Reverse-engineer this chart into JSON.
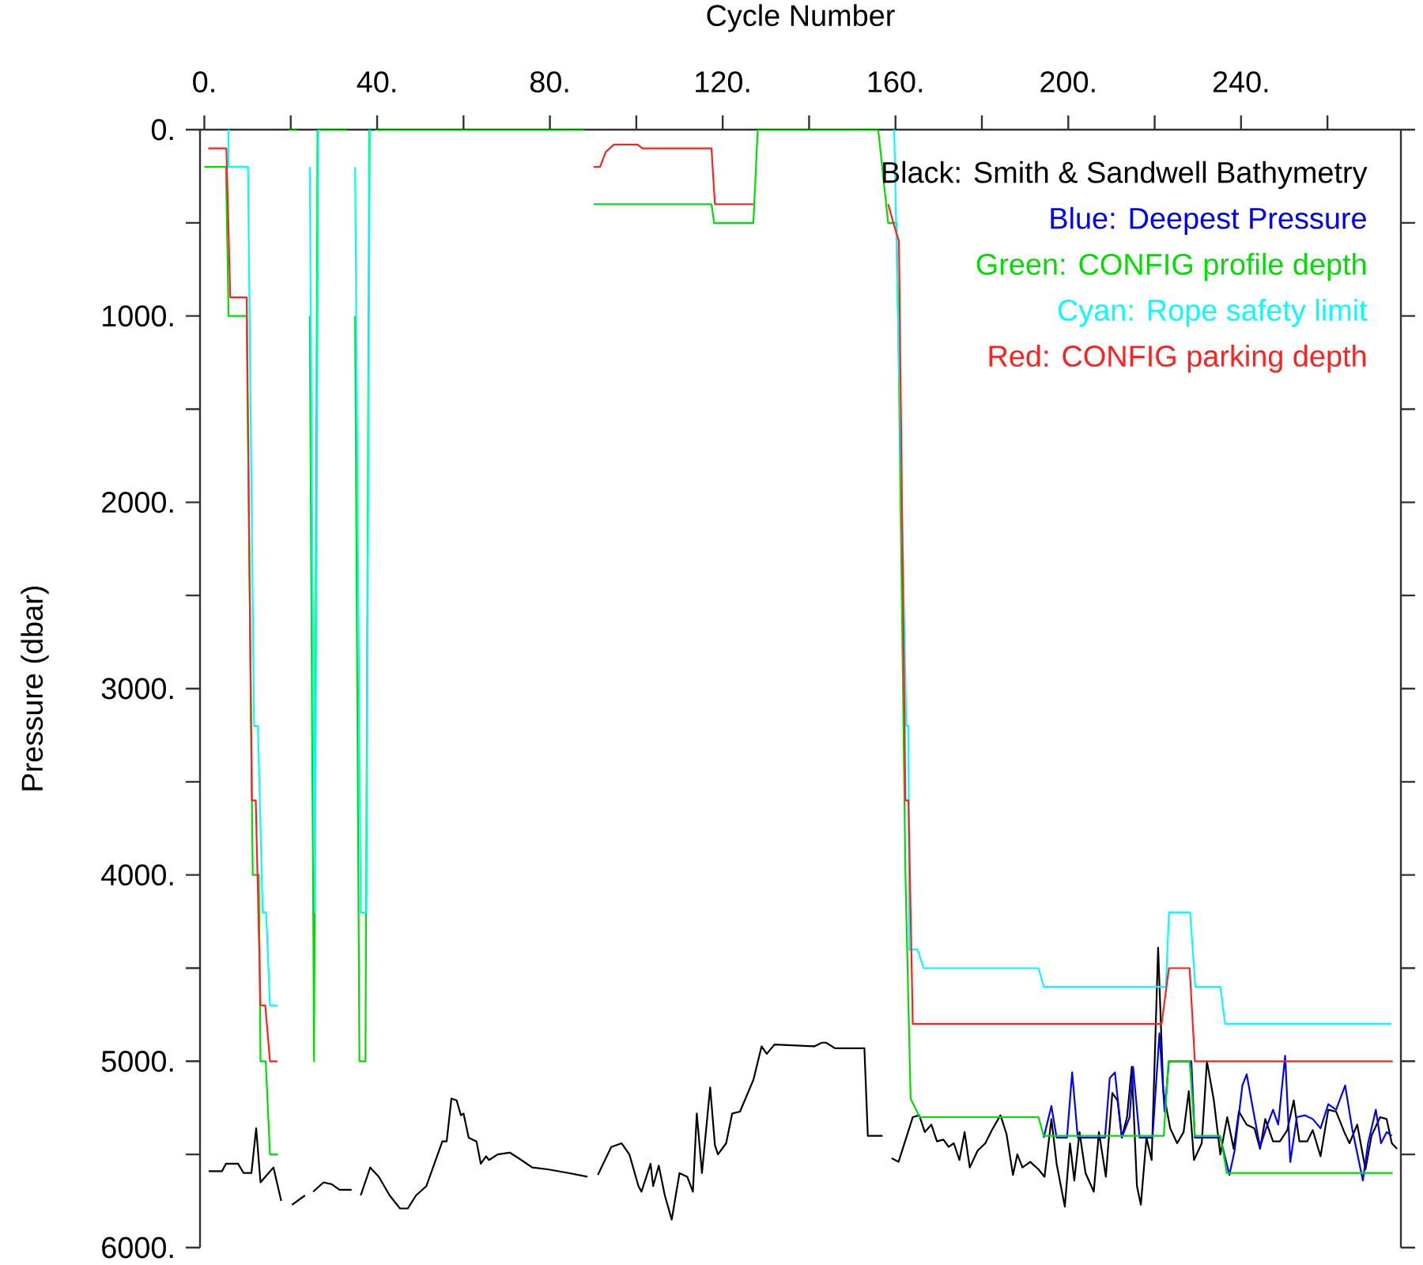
{
  "chart_data": {
    "type": "line",
    "xlabel": "Cycle Number",
    "ylabel": "Pressure (dbar)",
    "xlim": [
      -1,
      277
    ],
    "ylim": [
      6000,
      0
    ],
    "xticks": [
      {
        "value": 0,
        "label": "0."
      },
      {
        "value": 20,
        "label": null
      },
      {
        "value": 40,
        "label": "40."
      },
      {
        "value": 60,
        "label": null
      },
      {
        "value": 80,
        "label": "80."
      },
      {
        "value": 100,
        "label": null
      },
      {
        "value": 120,
        "label": "120."
      },
      {
        "value": 140,
        "label": null
      },
      {
        "value": 160,
        "label": "160."
      },
      {
        "value": 180,
        "label": null
      },
      {
        "value": 200,
        "label": "200."
      },
      {
        "value": 220,
        "label": null
      },
      {
        "value": 240,
        "label": "240."
      },
      {
        "value": 260,
        "label": null
      }
    ],
    "yticks": [
      {
        "value": 0,
        "label": "0."
      },
      {
        "value": 500,
        "label": null
      },
      {
        "value": 1000,
        "label": "1000."
      },
      {
        "value": 1500,
        "label": null
      },
      {
        "value": 2000,
        "label": "2000."
      },
      {
        "value": 2500,
        "label": null
      },
      {
        "value": 3000,
        "label": "3000."
      },
      {
        "value": 3500,
        "label": null
      },
      {
        "value": 4000,
        "label": "4000."
      },
      {
        "value": 4500,
        "label": null
      },
      {
        "value": 5000,
        "label": "5000."
      },
      {
        "value": 5500,
        "label": null
      },
      {
        "value": 6000,
        "label": "6000."
      }
    ],
    "legend": "top right",
    "series": [
      {
        "name": "Black: Smith & Sandwell Bathymetry",
        "color": "#000000",
        "x": [
          1,
          4.1,
          5,
          7.8,
          9.1,
          10.9,
          12,
          13,
          16,
          17.8,
          18.5,
          20.3,
          23.3,
          24,
          25.2,
          27.6,
          29.5,
          31.3,
          34.1,
          35,
          36.2,
          38.4,
          40.4,
          42.9,
          45.3,
          47.1,
          49,
          51.4,
          55.1,
          56.1,
          57.2,
          58.4,
          59.4,
          60,
          61.2,
          63,
          64,
          65.2,
          65.9,
          67.9,
          70.7,
          73.4,
          75.9,
          79.5,
          84.4,
          88.7,
          90,
          91.1,
          94.2,
          96.6,
          98.4,
          100.5,
          101.2,
          103.3,
          103.9,
          105.2,
          106.6,
          108.2,
          110,
          111.8,
          113.1,
          114,
          115.2,
          117.1,
          118.2,
          118.9,
          120.8,
          122.2,
          124,
          127.1,
          129,
          130.2,
          132,
          141.2,
          143,
          143.9,
          146,
          152.8,
          153.6,
          157,
          158,
          159.1,
          160.7,
          162.5,
          164,
          165.5,
          166.8,
          168.3,
          169.6,
          171.1,
          172.3,
          173.5,
          174.8,
          176,
          177.2,
          179,
          180.8,
          182.3,
          184.3,
          185.7,
          187.2,
          188.2,
          189.4,
          191.2,
          193.1,
          194.5,
          196.1,
          197.3,
          199.2,
          200.4,
          201.4,
          202.6,
          204,
          205.9,
          207.1,
          208.7,
          210.2,
          211.4,
          212.4,
          213.6,
          214.7,
          215.9,
          216.8,
          218.1,
          219.3,
          220.8,
          222,
          223.6,
          225.2,
          226.7,
          227.9,
          229.1,
          230.9,
          232.1,
          233.7,
          235.2,
          236.8,
          238.3,
          239.5,
          241.3,
          243.1,
          244.4,
          245.6,
          247.4,
          249,
          250.7,
          252.2,
          253.5,
          255.3,
          256.6,
          258.4,
          260.2,
          262,
          263.9,
          265.1,
          266.9,
          268.8,
          270.2,
          272.2,
          273.7,
          274.9,
          276.1
        ],
        "values": [
          5590,
          5590,
          5550,
          5550,
          5600,
          5600,
          5360,
          5650,
          5570,
          5750,
          null,
          5770,
          5720,
          null,
          5700,
          5650,
          5660,
          5690,
          5690,
          null,
          5720,
          5570,
          5620,
          5720,
          5790,
          5790,
          5720,
          5670,
          5430,
          5430,
          5200,
          5210,
          5290,
          5280,
          5410,
          5430,
          5550,
          5510,
          5530,
          5500,
          5490,
          5530,
          5570,
          5580,
          5600,
          5620,
          null,
          5610,
          5460,
          5440,
          5500,
          5670,
          5700,
          5550,
          5670,
          5560,
          5720,
          5850,
          5600,
          5620,
          5700,
          5280,
          5600,
          5140,
          5450,
          5500,
          5440,
          5280,
          5270,
          5100,
          4920,
          4960,
          4910,
          4920,
          4900,
          4900,
          4930,
          4930,
          5400,
          5400,
          null,
          5520,
          5540,
          5410,
          5300,
          5290,
          5380,
          5340,
          5430,
          5420,
          5460,
          5440,
          5530,
          5380,
          5570,
          5480,
          5440,
          5370,
          5290,
          5390,
          5610,
          5500,
          5570,
          5540,
          5580,
          5620,
          5310,
          5550,
          5780,
          5440,
          5640,
          5380,
          5600,
          5700,
          5380,
          5620,
          5170,
          5210,
          5410,
          5300,
          5030,
          5670,
          5770,
          5410,
          5530,
          4390,
          5160,
          5360,
          5440,
          5380,
          5160,
          5530,
          5440,
          5000,
          5210,
          5500,
          5300,
          5470,
          5270,
          5340,
          5360,
          5470,
          5310,
          5430,
          5430,
          5370,
          5210,
          5430,
          5430,
          5370,
          5510,
          5260,
          5270,
          5380,
          5440,
          5340,
          5580,
          5400,
          5300,
          5310,
          5440,
          5470
        ]
      },
      {
        "name": "Blue: Deepest Pressure",
        "color": "#0000ff",
        "x": [
          194.3,
          196.1,
          197.3,
          199.7,
          200.9,
          202.2,
          208.5,
          209.6,
          210.8,
          212.4,
          214.2,
          215,
          216.5,
          219.5,
          221.1,
          222.3,
          223.3,
          228.5,
          229.3,
          235.2,
          237.3,
          238.5,
          240.3,
          241.3,
          243.1,
          244.4,
          245.8,
          247.4,
          248.6,
          250.2,
          251.4,
          252.9,
          254.8,
          256.6,
          258.4,
          260.2,
          262,
          264.1,
          265.7,
          268.2,
          269.4,
          271.2,
          272.4,
          273.7,
          274.9
        ],
        "values": [
          5410,
          5240,
          5410,
          5410,
          5060,
          5410,
          5410,
          5090,
          5060,
          5410,
          5300,
          5030,
          5410,
          5410,
          4850,
          5270,
          5000,
          5000,
          5410,
          5410,
          5610,
          5480,
          5130,
          5070,
          5300,
          5460,
          5360,
          5260,
          5340,
          4970,
          5540,
          5300,
          5290,
          5310,
          5360,
          5230,
          5260,
          5130,
          5360,
          5640,
          5440,
          5260,
          5440,
          5380,
          5400
        ]
      },
      {
        "name": "Green: CONFIG profile depth",
        "color": "#00dd00",
        "x": [
          0,
          5,
          5.6,
          9.8,
          11.2,
          12.6,
          13,
          14.2,
          15.2,
          17,
          18,
          19.5,
          21.4,
          22,
          24.4,
          25.4,
          26.2,
          33.1,
          34,
          34.9,
          35.9,
          37.3,
          38.2,
          39,
          39.6,
          88,
          89,
          90.1,
          117.4,
          118,
          127.1,
          128.1,
          156,
          158.3,
          160.2,
          160.6,
          162.3,
          163.5,
          165.6,
          193.1,
          194.3,
          222.1,
          223.2,
          228.1,
          229.3,
          235.2,
          236.7,
          275.1
        ],
        "values": [
          200,
          200,
          1000,
          1000,
          4000,
          4000,
          5000,
          5000,
          5500,
          5500,
          null,
          0,
          0,
          null,
          1000,
          5000,
          0,
          0,
          null,
          1000,
          5000,
          5000,
          0,
          null,
          0,
          0,
          null,
          400,
          400,
          500,
          500,
          0,
          0,
          500,
          500,
          1000,
          4000,
          5200,
          5300,
          5300,
          5400,
          5400,
          5000,
          5000,
          5400,
          5400,
          5600,
          5600
        ]
      },
      {
        "name": "Cyan: Rope safety limit",
        "color": "#00ffff",
        "x": [
          5.6,
          5.6,
          10.1,
          11.5,
          12.4,
          13.5,
          14.3,
          15.2,
          16.9,
          18,
          24.4,
          25.6,
          26.4,
          27,
          34.9,
          36.2,
          37.5,
          38.3,
          39,
          159.7,
          162.5,
          163,
          163.2,
          165.1,
          166.5,
          193.1,
          194.3,
          222.6,
          223.3,
          228.2,
          229.4,
          235.2,
          236.3,
          274.8
        ],
        "values": [
          0,
          200,
          200,
          3200,
          3200,
          4200,
          4200,
          4700,
          4700,
          null,
          200,
          4200,
          0,
          null,
          200,
          4200,
          4200,
          0,
          null,
          0,
          3200,
          3200,
          4400,
          4400,
          4500,
          4500,
          4600,
          4600,
          4200,
          4200,
          4600,
          4600,
          4800,
          4800
        ]
      },
      {
        "name": "Red: CONFIG parking depth",
        "color": "#ff2020",
        "x": [
          0.9,
          5.1,
          6,
          9.8,
          11,
          11.9,
          13,
          14.1,
          15.2,
          16.9,
          18,
          90.1,
          91.6,
          92.9,
          94.8,
          100.3,
          101.4,
          117.4,
          118.2,
          127.1,
          128,
          158.3,
          159.5,
          160.8,
          162.3,
          163,
          164,
          221.6,
          223.3,
          228.1,
          229.3,
          275.1
        ],
        "values": [
          100,
          100,
          900,
          900,
          3600,
          3600,
          4700,
          4700,
          5000,
          5000,
          null,
          200,
          200,
          120,
          80,
          80,
          100,
          100,
          400,
          400,
          null,
          400,
          500,
          600,
          3600,
          3600,
          4800,
          4800,
          4500,
          4500,
          5000,
          5000
        ]
      }
    ]
  }
}
